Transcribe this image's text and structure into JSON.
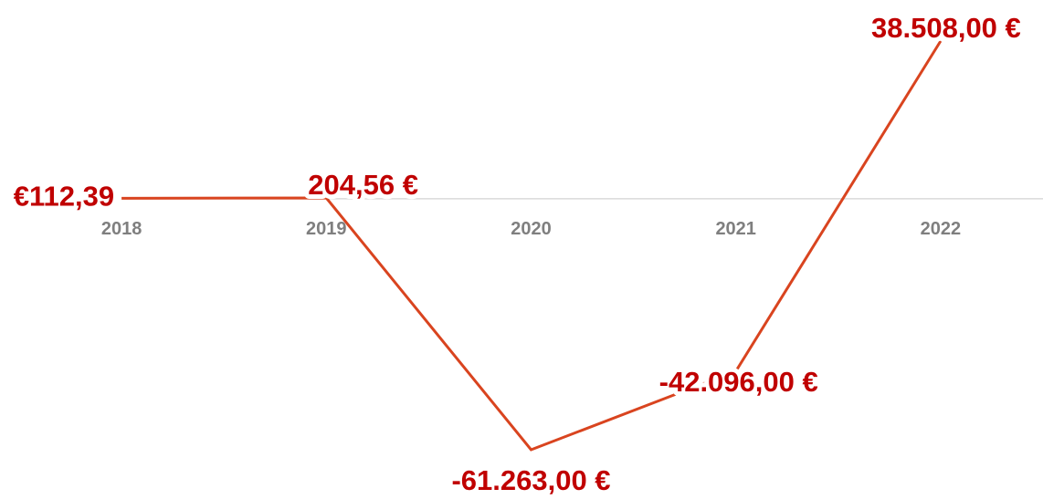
{
  "chart_data": {
    "type": "line",
    "categories": [
      "2018",
      "2019",
      "2020",
      "2021",
      "2022"
    ],
    "series": [
      {
        "color": "#d9441f",
        "values": [
          112.39,
          204.56,
          -61263,
          -42096,
          38508
        ],
        "value_labels": [
          "€112,39",
          "204,56 €",
          "-61.263,00 €",
          "-42.096,00 €",
          "38.508,00 €"
        ]
      }
    ]
  }
}
